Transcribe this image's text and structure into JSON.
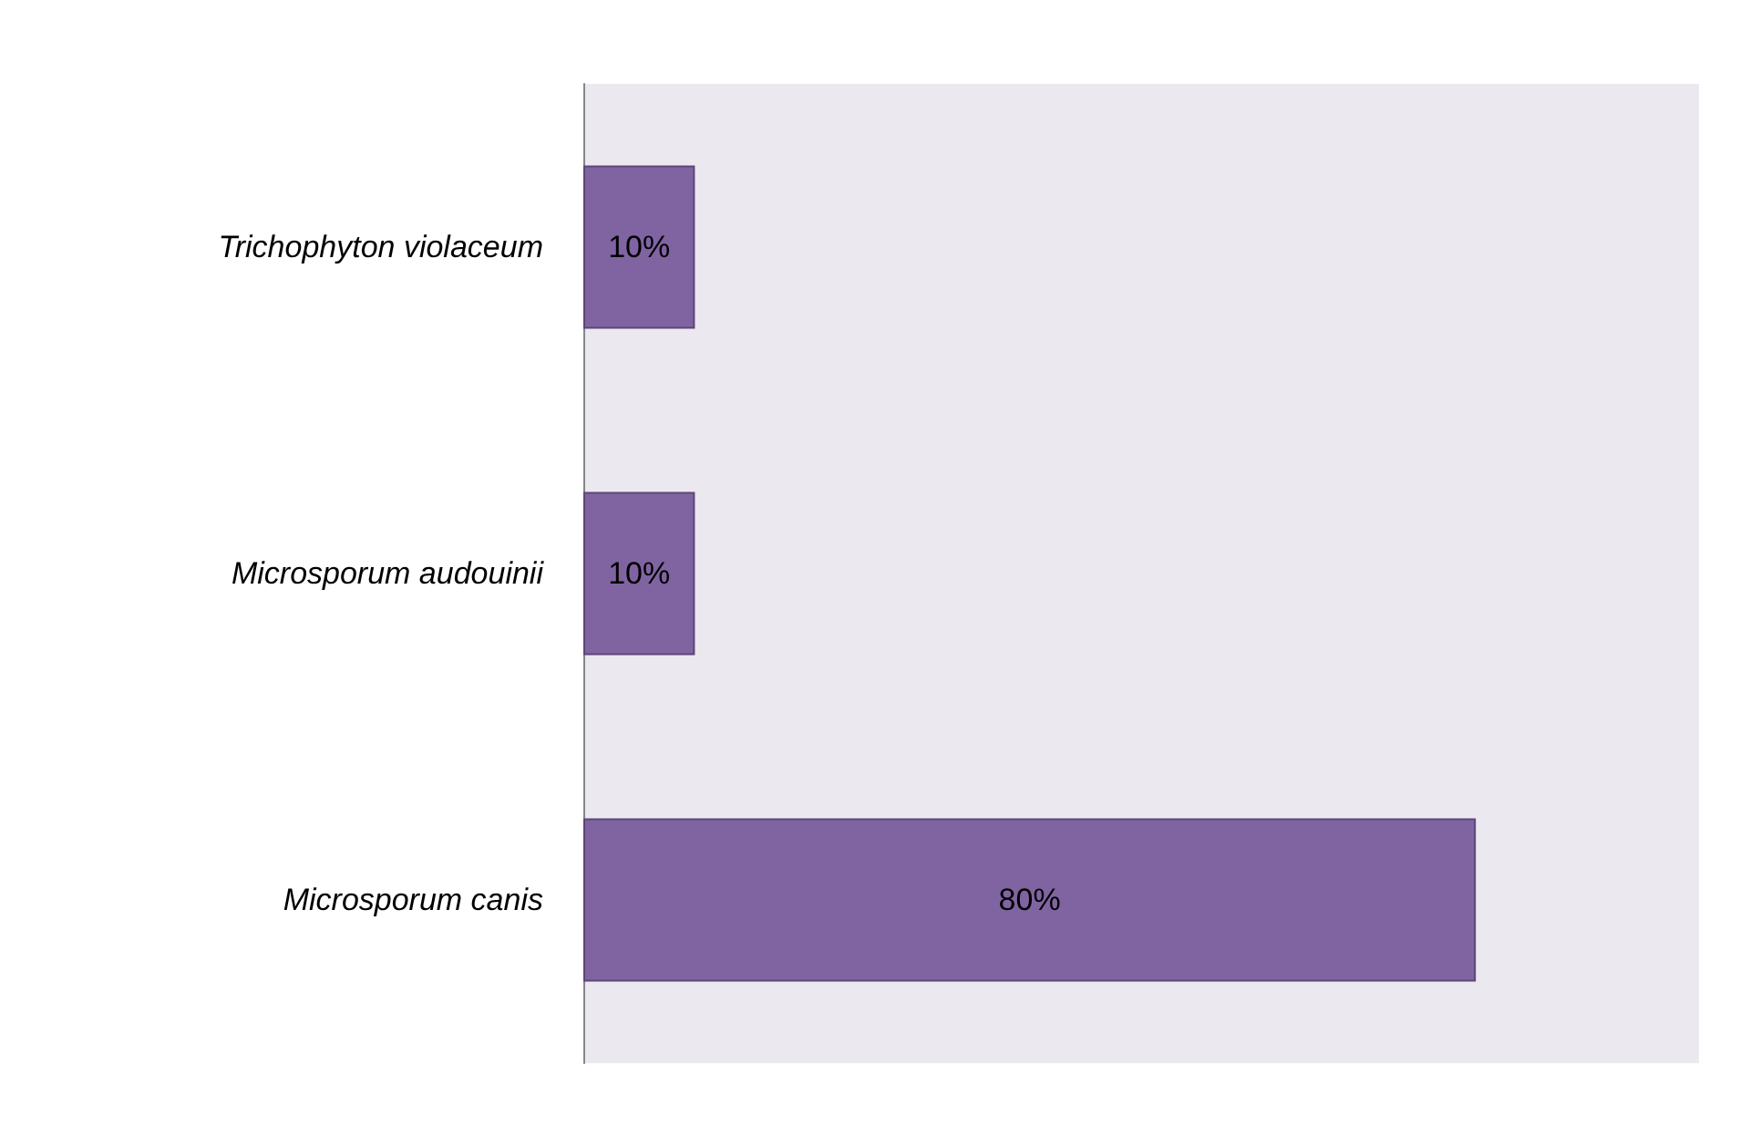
{
  "chart_data": {
    "type": "bar",
    "orientation": "horizontal",
    "categories": [
      "Trichophyton violaceum",
      "Microsporum audouinii",
      "Microsporum canis"
    ],
    "values": [
      10,
      10,
      80
    ],
    "value_labels": [
      "10%",
      "10%",
      "80%"
    ],
    "color": "#8064a2",
    "xlim": [
      0,
      100
    ]
  }
}
